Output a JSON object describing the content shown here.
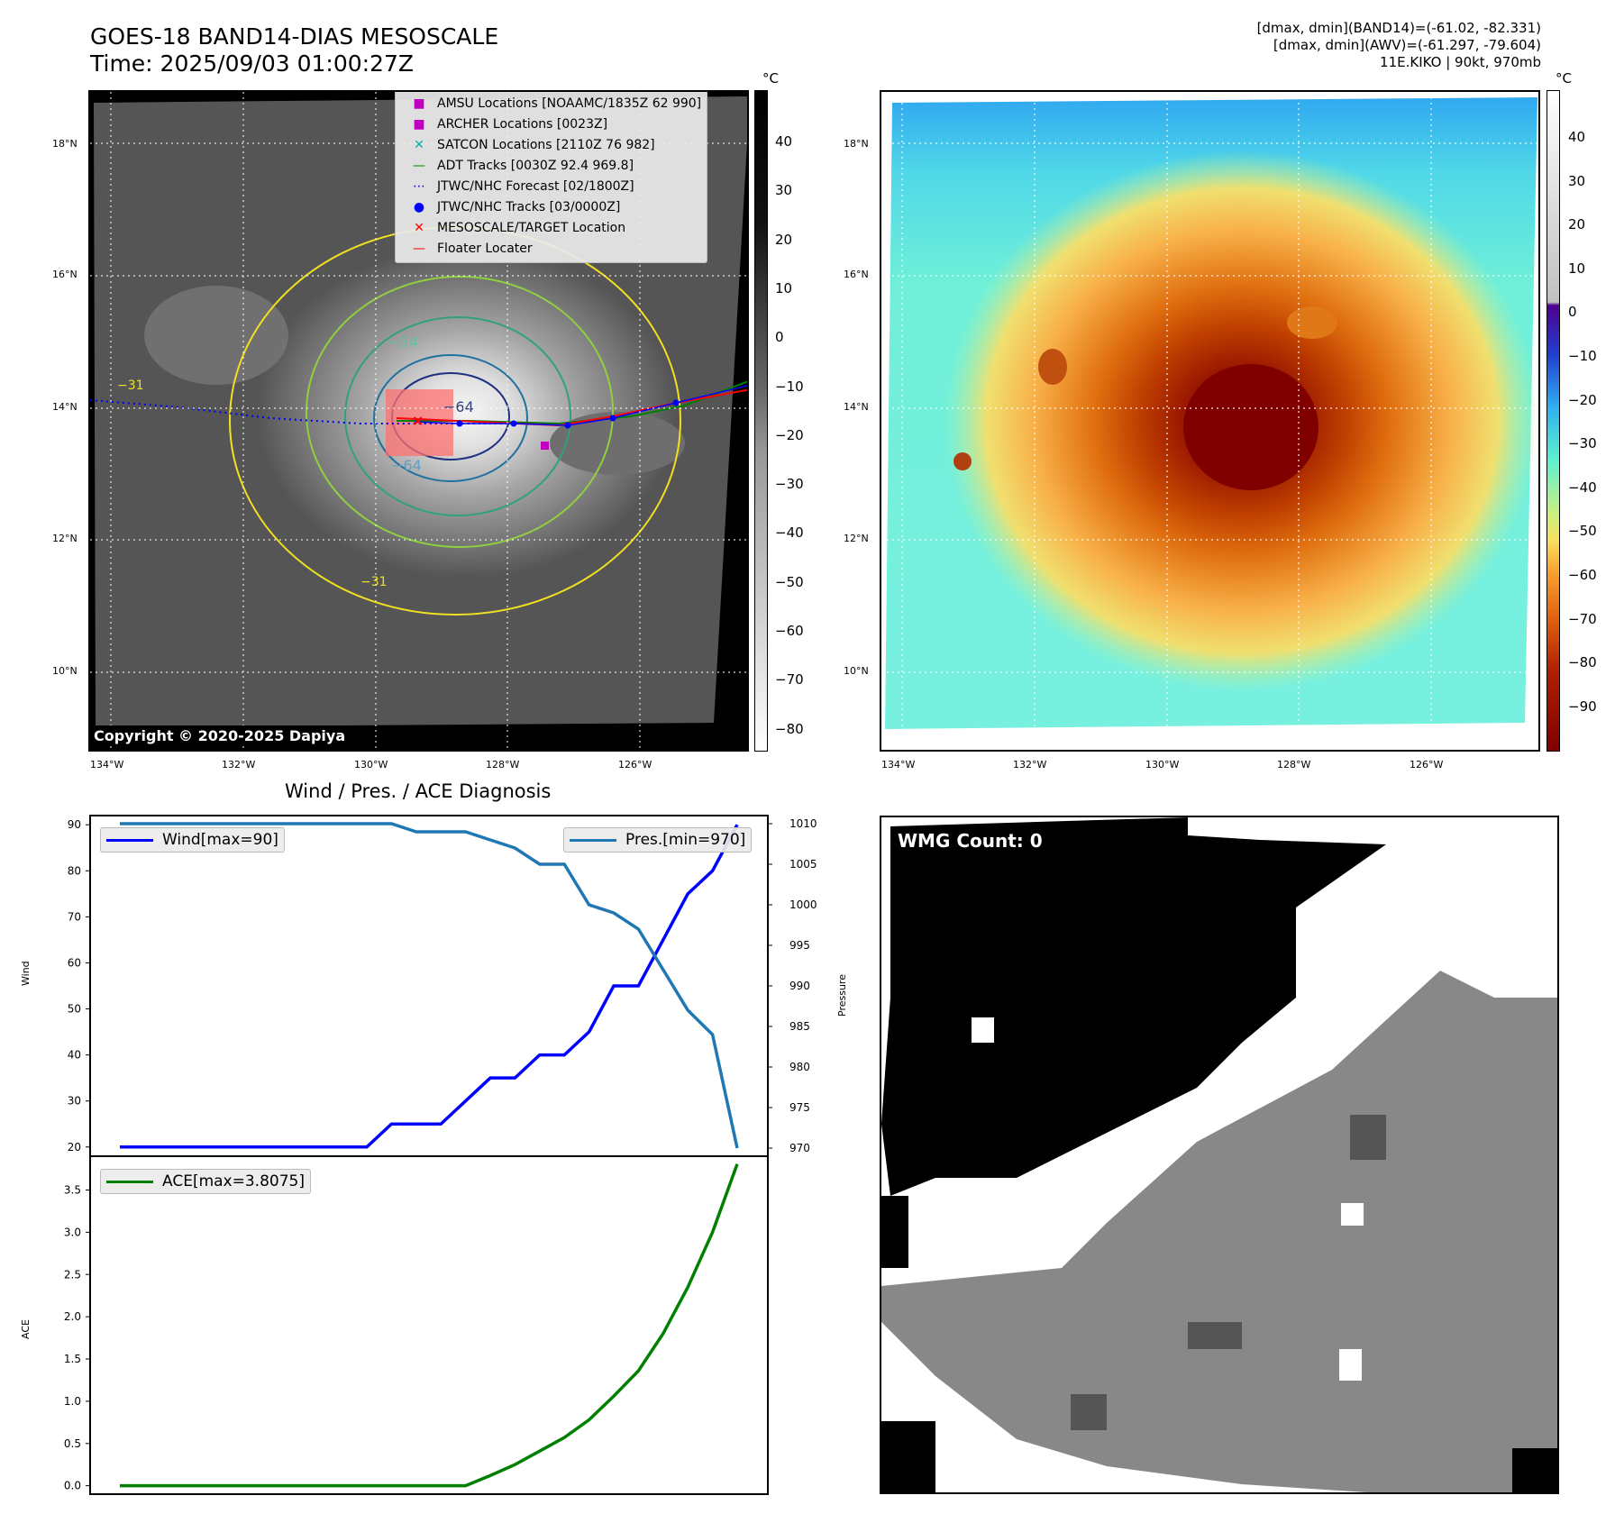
{
  "header": {
    "title_line1": "GOES-18 BAND14-DIAS MESOSCALE",
    "title_line2": "Time: 2025/09/03 01:00:27Z",
    "info_line1": "[dmax, dmin](BAND14)=(-61.02, -82.331)",
    "info_line2": "[dmax, dmin](AWV)=(-61.297, -79.604)",
    "info_line3": "11E.KIKO | 90kt, 970mb"
  },
  "maps": {
    "lat_labels": [
      "18°N",
      "16°N",
      "14°N",
      "12°N",
      "10°N"
    ],
    "lon_labels": [
      "134°W",
      "132°W",
      "130°W",
      "128°W",
      "126°W"
    ],
    "unit": "°C",
    "grey_cbar_ticks": [
      "40",
      "30",
      "20",
      "10",
      "0",
      "−10",
      "−20",
      "−30",
      "−40",
      "−50",
      "−60",
      "−70",
      "−80"
    ],
    "color_cbar_ticks": [
      "40",
      "30",
      "20",
      "10",
      "0",
      "−10",
      "−20",
      "−30",
      "−40",
      "−50",
      "−60",
      "−70",
      "−80",
      "−90"
    ],
    "copyright": "Copyright © 2020-2025 Dapiya",
    "contour_labels": [
      "−54",
      "−64",
      "−64",
      "−31",
      "−31"
    ],
    "legend": [
      {
        "symbol": "■",
        "color": "#c000c0",
        "label": "AMSU Locations [NOAAMC/1835Z 62 990]"
      },
      {
        "symbol": "■",
        "color": "#c000c0",
        "label": "ARCHER Locations [0023Z]"
      },
      {
        "symbol": "✕",
        "color": "#00b0b0",
        "label": "SATCON Locations [2110Z 76 982]"
      },
      {
        "symbol": "—",
        "color": "#008000",
        "label": "ADT Tracks [0030Z 92.4 969.8]"
      },
      {
        "symbol": "⋯",
        "color": "#0000ff",
        "label": "JTWC/NHC Forecast [02/1800Z]"
      },
      {
        "symbol": "●",
        "color": "#0000ff",
        "label": "JTWC/NHC Tracks [03/0000Z]"
      },
      {
        "symbol": "✕",
        "color": "#ff0000",
        "label": "MESOSCALE/TARGET Location"
      },
      {
        "symbol": "—",
        "color": "#ff0000",
        "label": "Floater Locater"
      }
    ]
  },
  "diagnosis": {
    "title": "Wind / Pres. / ACE Diagnosis",
    "wind_ylabel": "Wind",
    "pres_ylabel": "Pressure",
    "ace_ylabel": "ACE",
    "wind_legend": "Wind[max=90]",
    "pres_legend": "Pres.[min=970]",
    "ace_legend": "ACE[max=3.8075]"
  },
  "wmg": {
    "label": "WMG Count: 0"
  },
  "chart_data": [
    {
      "type": "line",
      "title": "Wind / Pres. / ACE Diagnosis",
      "x": [
        0,
        1,
        2,
        3,
        4,
        5,
        6,
        7,
        8,
        9,
        10,
        11,
        12,
        13,
        14,
        15,
        16,
        17,
        18,
        19,
        20,
        21,
        22,
        23,
        24,
        25
      ],
      "series": [
        {
          "name": "Wind[max=90]",
          "axis": "left",
          "color": "#0000ff",
          "values": [
            20,
            20,
            20,
            20,
            20,
            20,
            20,
            20,
            20,
            20,
            20,
            25,
            25,
            25,
            30,
            35,
            35,
            40,
            40,
            45,
            55,
            55,
            65,
            75,
            80,
            90
          ]
        },
        {
          "name": "Pres.[min=970]",
          "axis": "right",
          "color": "#1f77b4",
          "values": [
            1010,
            1010,
            1010,
            1010,
            1010,
            1010,
            1010,
            1010,
            1010,
            1010,
            1010,
            1010,
            1009,
            1009,
            1009,
            1008,
            1007,
            1005,
            1005,
            1000,
            999,
            997,
            992,
            987,
            984,
            970
          ]
        }
      ],
      "ylim_left": [
        18,
        92
      ],
      "ylim_right": [
        969,
        1011
      ],
      "yticks_left": [
        20,
        30,
        40,
        50,
        60,
        70,
        80,
        90
      ],
      "yticks_right": [
        970,
        975,
        980,
        985,
        990,
        995,
        1000,
        1005,
        1010
      ],
      "ylabel_left": "Wind",
      "ylabel_right": "Pressure"
    },
    {
      "type": "line",
      "x": [
        0,
        1,
        2,
        3,
        4,
        5,
        6,
        7,
        8,
        9,
        10,
        11,
        12,
        13,
        14,
        15,
        16,
        17,
        18,
        19,
        20,
        21,
        22,
        23,
        24,
        25
      ],
      "series": [
        {
          "name": "ACE[max=3.8075]",
          "color": "#008000",
          "values": [
            0,
            0,
            0,
            0,
            0,
            0,
            0,
            0,
            0,
            0,
            0,
            0,
            0,
            0,
            0,
            0.12,
            0.25,
            0.41,
            0.57,
            0.78,
            1.06,
            1.36,
            1.8,
            2.35,
            3.0,
            3.8075
          ]
        }
      ],
      "ylim": [
        -0.1,
        3.9
      ],
      "yticks": [
        0.0,
        0.5,
        1.0,
        1.5,
        2.0,
        2.5,
        3.0,
        3.5
      ],
      "ylabel": "ACE"
    }
  ]
}
